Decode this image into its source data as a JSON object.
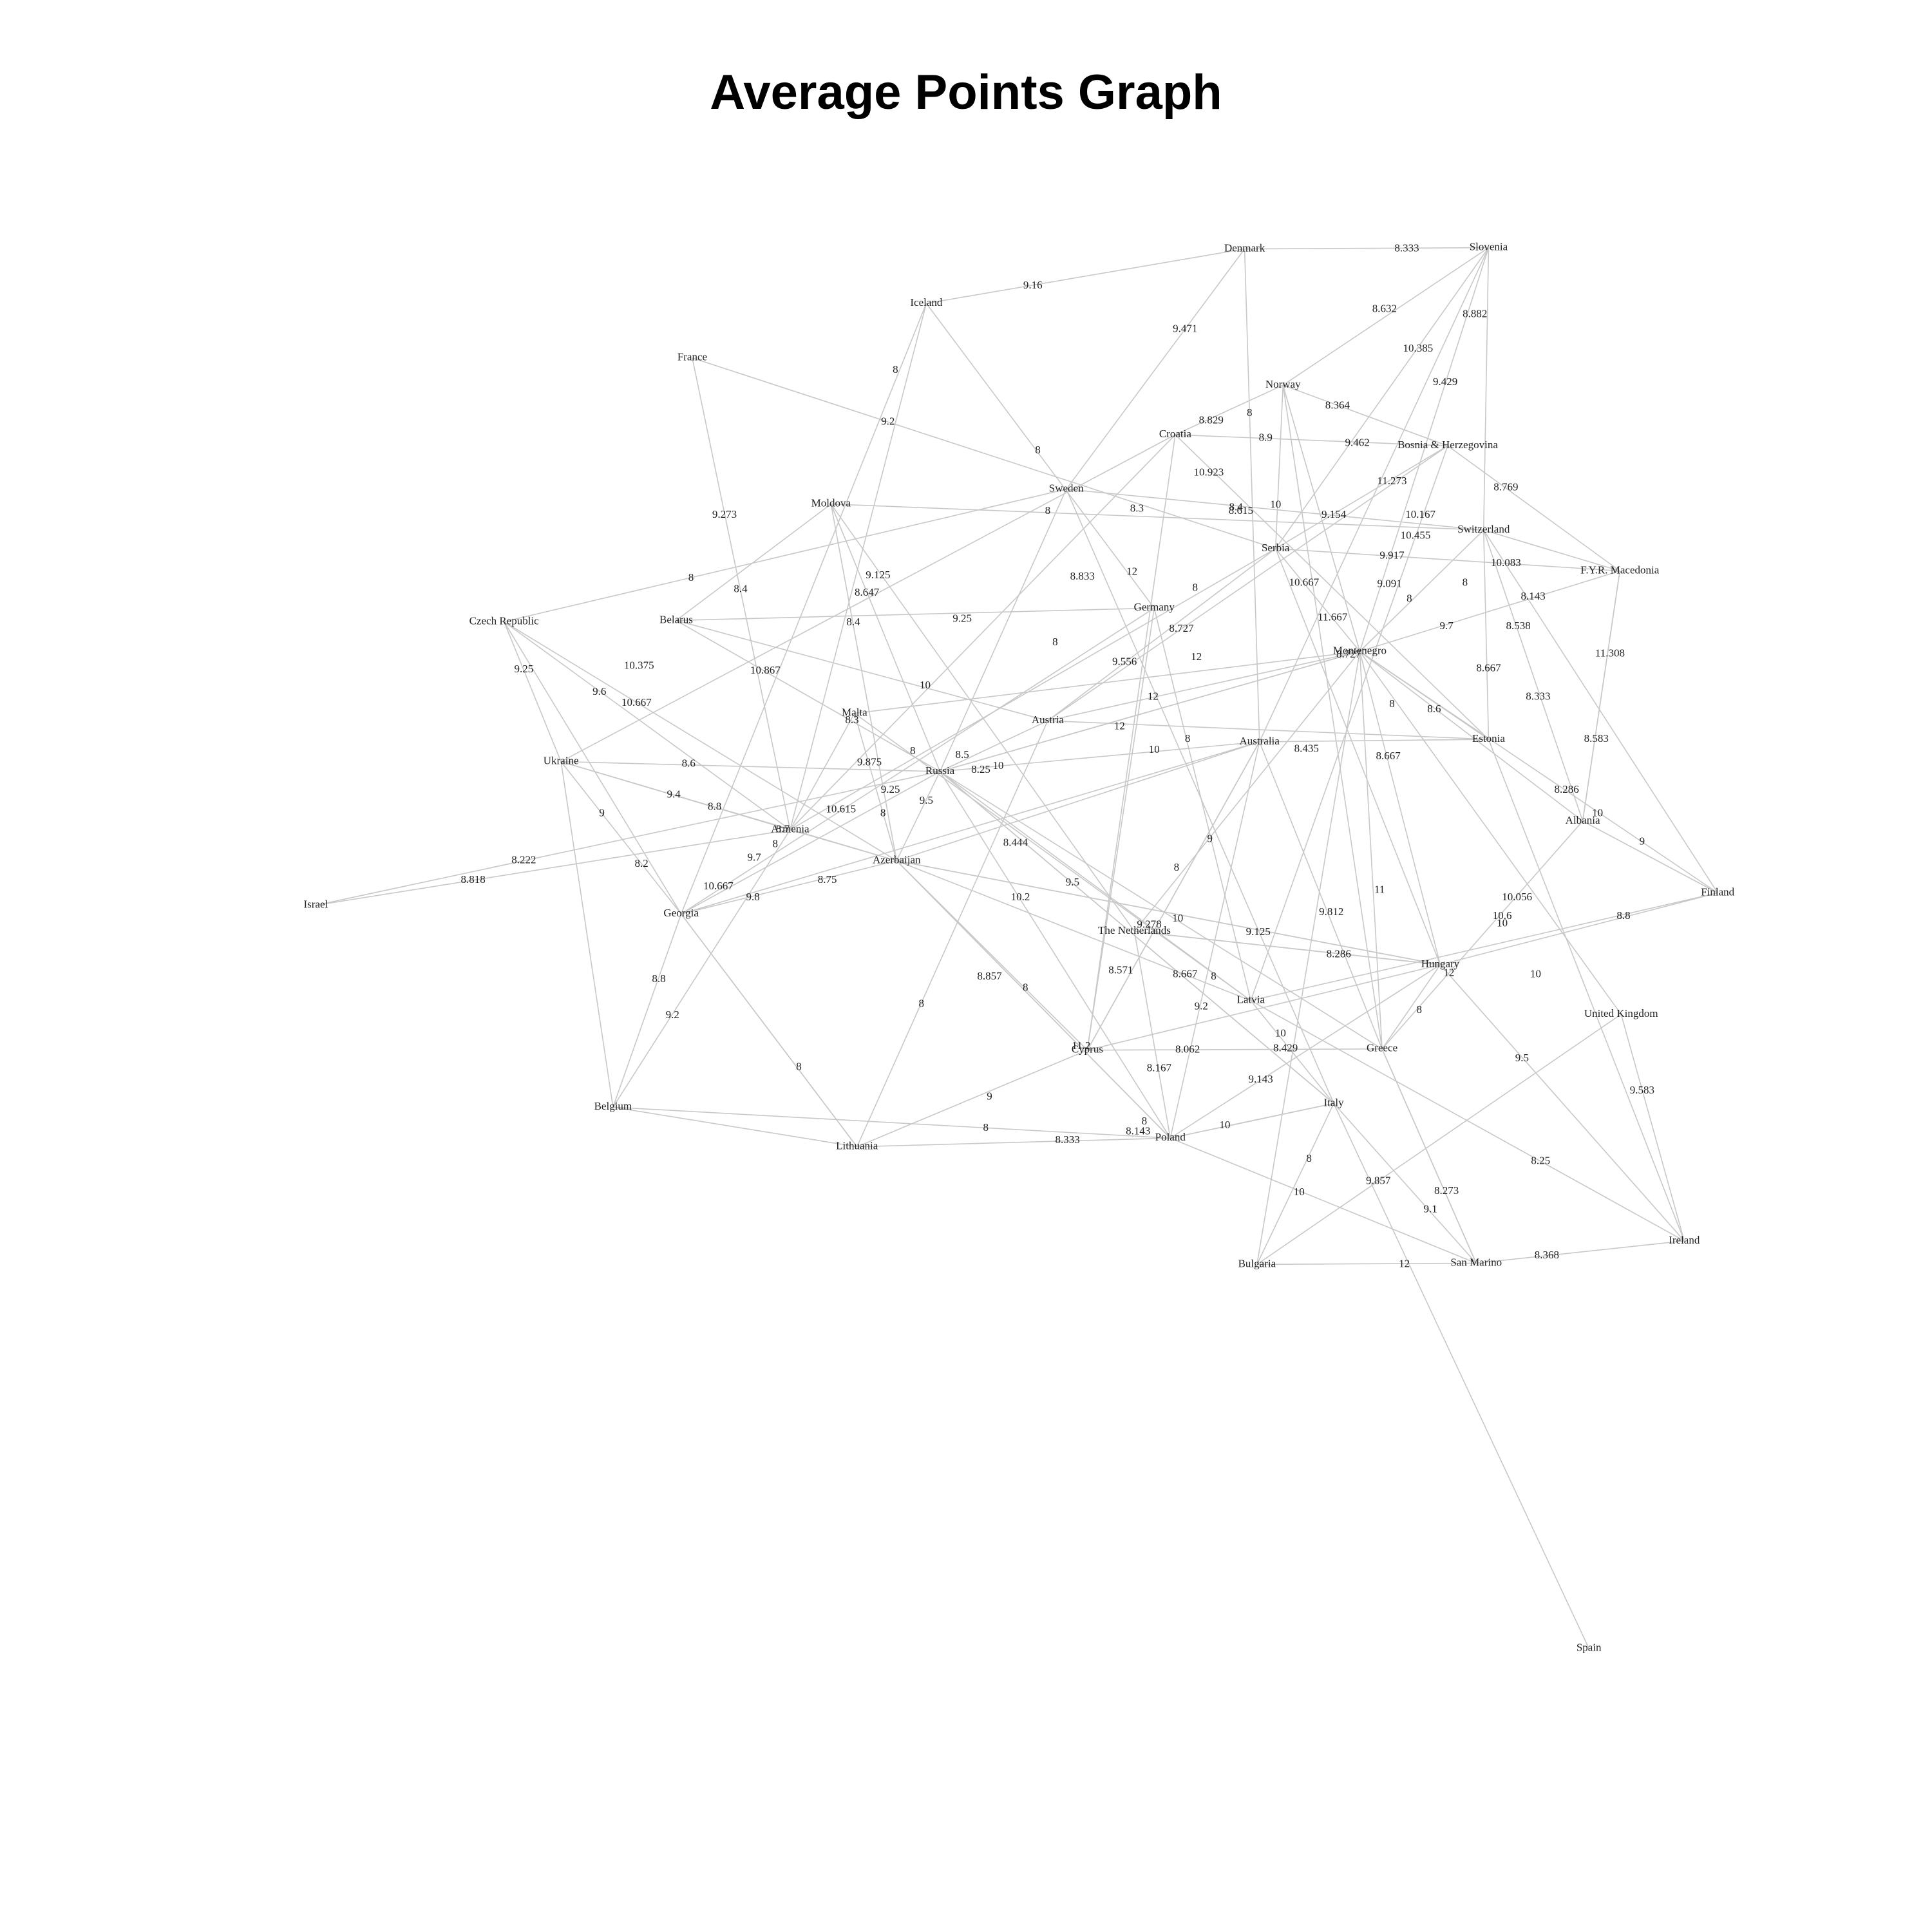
{
  "title": "Average Points Graph",
  "colors": {
    "edge": "#c8c8c8",
    "text": "#222222",
    "background": "#ffffff"
  },
  "nodes": [
    "Denmark",
    "Slovenia",
    "Iceland",
    "France",
    "Norway",
    "Croatia",
    "Bosnia & Herzegovina",
    "Sweden",
    "Moldova",
    "Switzerland",
    "Serbia",
    "F.Y.R. Macedonia",
    "Czech Republic",
    "Belarus",
    "Germany",
    "Montenegro",
    "Malta",
    "Austria",
    "Australia",
    "Estonia",
    "Ukraine",
    "Russia",
    "Albania",
    "Armenia",
    "Israel",
    "Azerbaijan",
    "Finland",
    "Georgia",
    "The Netherlands",
    "Hungary",
    "Latvia",
    "United Kingdom",
    "Greece",
    "Cyprus",
    "Italy",
    "Belgium",
    "Poland",
    "Lithuania",
    "Bulgaria",
    "San Marino",
    "Ireland",
    "Spain"
  ],
  "edge_labels": [
    "8.333",
    "9.16",
    "9.471",
    "8.632",
    "8.882",
    "10.385",
    "9.429",
    "8",
    "8",
    "9.2",
    "8.364",
    "8.829",
    "8",
    "8.9",
    "9.462",
    "10.923",
    "11.273",
    "8.769",
    "9.273",
    "8",
    "8.3",
    "8.4",
    "8.615",
    "10",
    "9.154",
    "10.167",
    "10.455",
    "9.917",
    "10.083",
    "12",
    "8",
    "8.833",
    "9.125",
    "8.647",
    "8.4",
    "9.091",
    "8.143",
    "8",
    "8",
    "10.667",
    "9.25",
    "8",
    "8.4",
    "8.727",
    "11.667",
    "9.7",
    "8.538",
    "11.308",
    "9.25",
    "9.6",
    "10.375",
    "10.867",
    "8",
    "9.556",
    "12",
    "8.727",
    "10.667",
    "10",
    "12",
    "12",
    "8.667",
    "8.333",
    "8.3",
    "8",
    "10",
    "8.435",
    "8.6",
    "8.583",
    "8",
    "8.6",
    "9.875",
    "8.5",
    "8.25",
    "10",
    "9.4",
    "8.8",
    "8.667",
    "8.286",
    "10",
    "9",
    "8.222",
    "10.615",
    "9.25",
    "9.5",
    "8",
    "8.818",
    "8.2",
    "8.7",
    "8",
    "9.7",
    "8",
    "10.667",
    "9.8",
    "8.75",
    "8.444",
    "8",
    "9",
    "10.2",
    "9.5",
    "9.278",
    "10",
    "9.125",
    "9.812",
    "10.056",
    "10.6",
    "10",
    "8.8",
    "9",
    "8.8",
    "9.2",
    "8.286",
    "8.571",
    "8.857",
    "8",
    "8.667",
    "8",
    "9.2",
    "12",
    "8",
    "10",
    "8",
    "10",
    "11",
    "8.429",
    "11.2",
    "8.062",
    "9.583",
    "8",
    "8.167",
    "9.143",
    "8.143",
    "8",
    "8.333",
    "10",
    "9",
    "8",
    "9.5",
    "9.857",
    "8.273",
    "8.25",
    "9.1",
    "10",
    "8",
    "12",
    "8.368"
  ]
}
